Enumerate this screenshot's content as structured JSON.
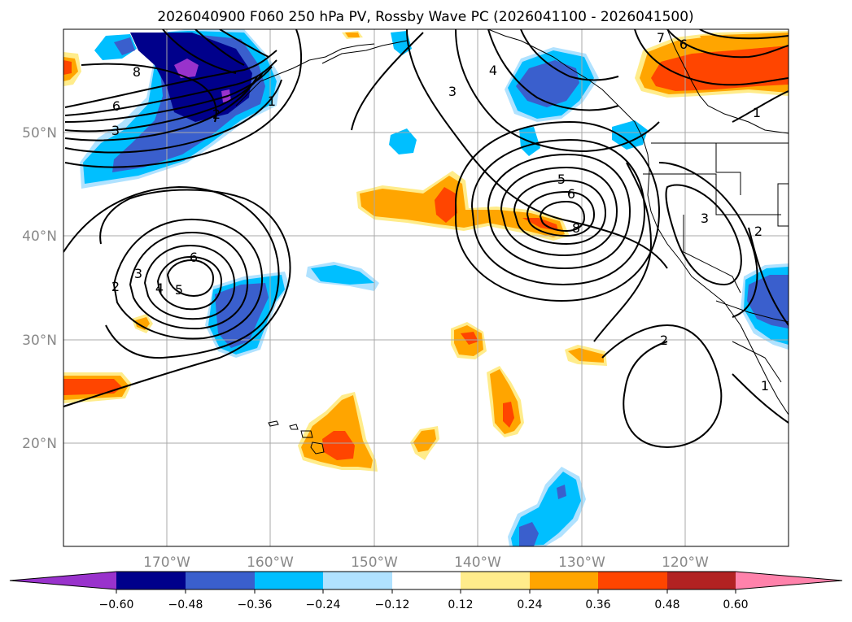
{
  "figure": {
    "title": "2026040900 F060 250 hPa PV, Rossby Wave PC (2026041100 - 2026041500)"
  },
  "map": {
    "projection": "PlateCarree",
    "lon_range": [
      -180,
      -110
    ],
    "lat_range": [
      10,
      60
    ],
    "gridlines": "on",
    "lon_ticks": [
      "170°W",
      "160°W",
      "150°W",
      "140°W",
      "130°W",
      "120°W"
    ],
    "lat_ticks": [
      "20°N",
      "30°N",
      "40°N",
      "50°N"
    ]
  },
  "colorbar": {
    "extend": "both",
    "tick_labels": [
      "−0.60",
      "−0.48",
      "−0.36",
      "−0.24",
      "−0.12",
      "0.12",
      "0.24",
      "0.36",
      "0.48",
      "0.60"
    ],
    "colors": [
      "#9932cc",
      "#00008b",
      "#3a5fcd",
      "#00bfff",
      "#b0e2ff",
      "#ffffff",
      "#ffec8b",
      "#ffa500",
      "#ff4500",
      "#b22222",
      "#ff82ab"
    ]
  },
  "chart_data": {
    "type": "heatmap",
    "title": "2026040900 F060 250 hPa PV, Rossby Wave PC (2026041100 - 2026041500)",
    "variable_shaded": "Rossby Wave PC anomaly",
    "variable_contoured": "250 hPa PV (PVU)",
    "levels": [
      -0.6,
      -0.48,
      -0.36,
      -0.24,
      -0.12,
      0.12,
      0.24,
      0.36,
      0.48,
      0.6
    ],
    "contour_labels": [
      "8",
      "6",
      "3",
      "2",
      "1",
      "2",
      "3",
      "4",
      "5",
      "6",
      "3",
      "4",
      "5",
      "6",
      "8",
      "3",
      "2",
      "2",
      "7",
      "6",
      "1",
      "1"
    ],
    "anomalies": [
      {
        "lon": -165,
        "lat": 54,
        "value": -0.6
      },
      {
        "lon": -164,
        "lat": 35,
        "value": -0.36
      },
      {
        "lon": -133,
        "lat": 55,
        "value": -0.36
      },
      {
        "lon": -114,
        "lat": 34,
        "value": -0.36
      },
      {
        "lon": -151,
        "lat": 21,
        "value": 0.36
      },
      {
        "lon": -135,
        "lat": 24,
        "value": 0.36
      },
      {
        "lon": -143,
        "lat": 42,
        "value": 0.36
      },
      {
        "lon": -120,
        "lat": 56,
        "value": 0.36
      },
      {
        "lon": -133,
        "lat": 14,
        "value": -0.36
      },
      {
        "lon": -176,
        "lat": 26,
        "value": 0.36
      }
    ]
  }
}
